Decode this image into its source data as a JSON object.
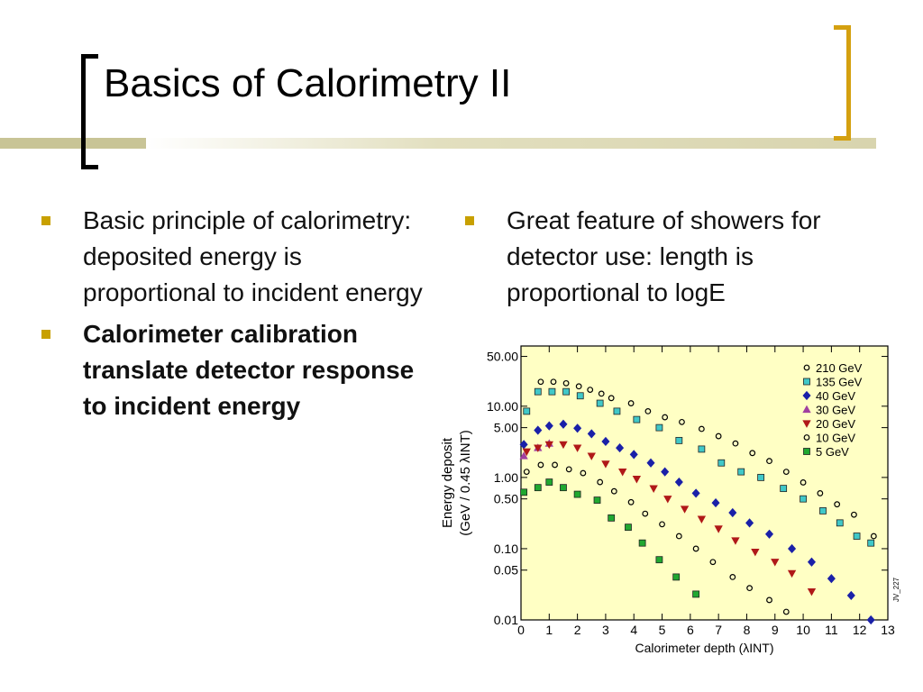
{
  "slide": {
    "title": "Basics of Calorimetry II",
    "left_bullets": [
      {
        "lines": [
          "Basic principle of calorimetry:",
          "deposited energy is proportional to incident energy"
        ],
        "bold": false
      },
      {
        "lines": [
          "Calorimeter calibration translate detector response to incident energy"
        ],
        "bold": true
      }
    ],
    "right_bullets": [
      {
        "lines": [
          "Great feature of showers for detector use: length is proportional to logE"
        ],
        "bold": false
      }
    ]
  },
  "chart_data": {
    "type": "scatter",
    "log_y": true,
    "legend": "upper right",
    "x_label": "Calorimeter depth (λINT)",
    "y_label": [
      "Energy deposit",
      "(GeV / 0.45 λINT)"
    ],
    "annotation": "JV_227",
    "xlim": [
      0,
      13
    ],
    "xticks": [
      0,
      1,
      2,
      3,
      4,
      5,
      6,
      7,
      8,
      9,
      10,
      11,
      12,
      13
    ],
    "ylim": [
      0.01,
      70
    ],
    "yticks": [
      {
        "value": 50,
        "label": "50.00"
      },
      {
        "value": 10,
        "label": "10.00"
      },
      {
        "value": 5,
        "label": "5.00"
      },
      {
        "value": 1,
        "label": "1.00"
      },
      {
        "value": 0.5,
        "label": "0.50"
      },
      {
        "value": 0.1,
        "label": "0.10"
      },
      {
        "value": 0.05,
        "label": "0.05"
      },
      {
        "value": 0.01,
        "label": "0.01"
      }
    ],
    "series": [
      {
        "name": "210 GeV",
        "marker": "circle-open",
        "color": "#000000",
        "x": [
          0.7,
          1.15,
          1.6,
          2.05,
          2.45,
          2.85,
          3.2,
          3.9,
          4.5,
          5.1,
          5.7,
          6.4,
          7.0,
          7.6,
          8.2,
          8.8,
          9.4,
          10.0,
          10.6,
          11.2,
          11.8,
          12.5
        ],
        "values": [
          22,
          22,
          21,
          19,
          17,
          15,
          13,
          11,
          8.5,
          7,
          6,
          4.8,
          3.8,
          3.0,
          2.2,
          1.7,
          1.2,
          0.85,
          0.6,
          0.42,
          0.3,
          0.15
        ]
      },
      {
        "name": "135 GeV",
        "marker": "square",
        "color": "#40c8c8",
        "x": [
          0.2,
          0.6,
          1.1,
          1.6,
          2.1,
          2.8,
          3.4,
          4.1,
          4.9,
          5.6,
          6.4,
          7.1,
          7.8,
          8.5,
          9.3,
          10.0,
          10.7,
          11.3,
          11.9,
          12.4
        ],
        "values": [
          8.5,
          16,
          16,
          16,
          14,
          11,
          8.5,
          6.5,
          5,
          3.3,
          2.5,
          1.6,
          1.2,
          1.0,
          0.7,
          0.5,
          0.34,
          0.23,
          0.15,
          0.12
        ]
      },
      {
        "name": "40 GeV",
        "marker": "diamond",
        "color": "#1a20a8",
        "x": [
          0.1,
          0.6,
          1.0,
          1.5,
          2.0,
          2.5,
          3.0,
          3.5,
          4.0,
          4.6,
          5.1,
          5.6,
          6.2,
          6.9,
          7.5,
          8.1,
          8.8,
          9.6,
          10.3,
          11.0,
          11.7,
          12.4
        ],
        "values": [
          2.9,
          4.6,
          5.3,
          5.6,
          4.9,
          4.1,
          3.2,
          2.6,
          2.1,
          1.6,
          1.2,
          0.86,
          0.6,
          0.44,
          0.32,
          0.23,
          0.16,
          0.1,
          0.065,
          0.038,
          0.022,
          0.01
        ]
      },
      {
        "name": "30 GeV",
        "marker": "triangle-up",
        "color": "#a040a0",
        "x": [
          0.1,
          0.6,
          1.0
        ],
        "values": [
          2.0,
          2.6,
          3.0
        ]
      },
      {
        "name": "20 GeV",
        "marker": "triangle-down",
        "color": "#b01818",
        "x": [
          0.2,
          0.6,
          1.0,
          1.5,
          2.0,
          2.5,
          3.0,
          3.6,
          4.1,
          4.7,
          5.2,
          5.8,
          6.4,
          7.0,
          7.6,
          8.3,
          9.0,
          9.6,
          10.3
        ],
        "values": [
          2.3,
          2.6,
          2.9,
          2.9,
          2.6,
          2.0,
          1.55,
          1.2,
          0.95,
          0.7,
          0.5,
          0.36,
          0.26,
          0.19,
          0.13,
          0.09,
          0.065,
          0.045,
          0.025
        ]
      },
      {
        "name": "10 GeV",
        "marker": "circle-open",
        "color": "#000000",
        "x": [
          0.2,
          0.7,
          1.2,
          1.7,
          2.2,
          2.8,
          3.3,
          3.9,
          4.4,
          5.0,
          5.6,
          6.2,
          6.8,
          7.5,
          8.1,
          8.8,
          9.4
        ],
        "values": [
          1.2,
          1.5,
          1.5,
          1.3,
          1.15,
          0.86,
          0.64,
          0.45,
          0.31,
          0.22,
          0.15,
          0.1,
          0.065,
          0.04,
          0.028,
          0.019,
          0.013
        ]
      },
      {
        "name": "5 GeV",
        "marker": "square",
        "color": "#20a830",
        "x": [
          0.1,
          0.6,
          1.0,
          1.5,
          2.0,
          2.7,
          3.2,
          3.8,
          4.3,
          4.9,
          5.5,
          6.2
        ],
        "values": [
          0.62,
          0.72,
          0.86,
          0.72,
          0.58,
          0.48,
          0.27,
          0.2,
          0.12,
          0.07,
          0.04,
          0.023
        ]
      }
    ]
  }
}
